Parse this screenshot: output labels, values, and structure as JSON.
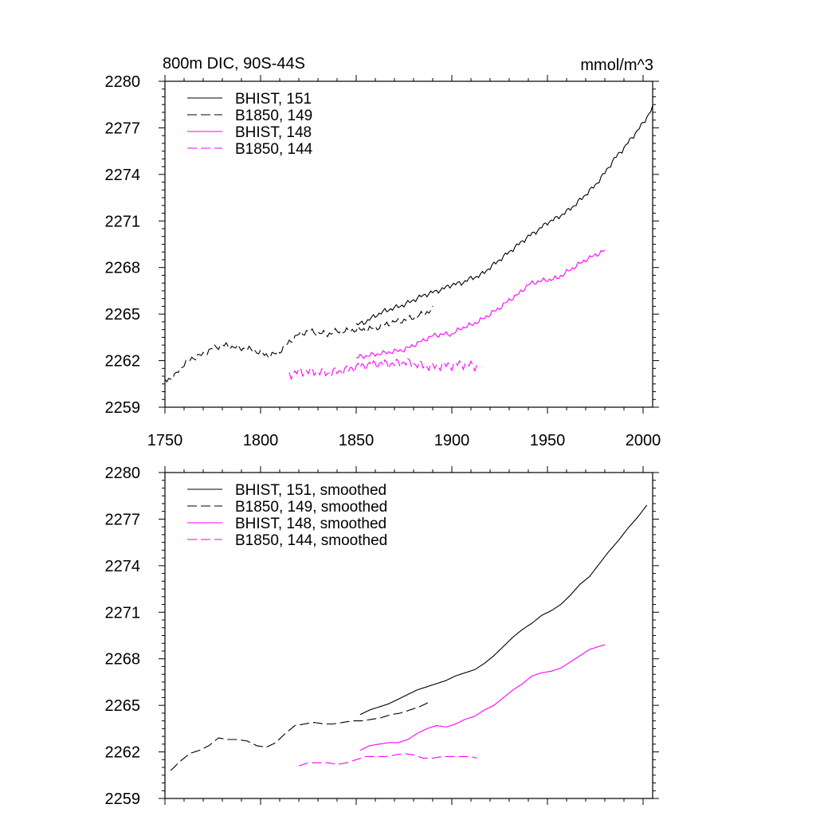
{
  "figure": {
    "title_left": "800m DIC, 90S-44S",
    "title_right": "mmol/m^3"
  },
  "chart_data": [
    {
      "type": "line",
      "xlim": [
        1750,
        2005
      ],
      "ylim": [
        2259,
        2280
      ],
      "xticks": [
        1750,
        1800,
        1850,
        1900,
        1950,
        2000
      ],
      "yticks": [
        2259,
        2262,
        2265,
        2268,
        2271,
        2274,
        2277,
        2280
      ],
      "show_xtick_labels": true,
      "legend_placement": "top-left",
      "colors": {
        "black": "#000000",
        "magenta": "#ff00ff"
      },
      "series": [
        {
          "name": "BHIST, 151",
          "color": "#000000",
          "dash": "solid",
          "x": [
            1850,
            1855,
            1860,
            1865,
            1870,
            1875,
            1880,
            1885,
            1890,
            1895,
            1900,
            1905,
            1910,
            1915,
            1920,
            1925,
            1930,
            1935,
            1940,
            1945,
            1950,
            1955,
            1960,
            1965,
            1970,
            1975,
            1980,
            1985,
            1990,
            1995,
            2000,
            2005
          ],
          "y": [
            2264.3,
            2264.5,
            2264.9,
            2265.2,
            2265.4,
            2265.6,
            2265.9,
            2266.2,
            2266.4,
            2266.6,
            2266.9,
            2267.0,
            2267.3,
            2267.5,
            2268.0,
            2268.5,
            2269.0,
            2269.5,
            2270.0,
            2270.4,
            2270.9,
            2271.2,
            2271.6,
            2272.1,
            2272.7,
            2273.3,
            2274.1,
            2275.0,
            2275.7,
            2276.5,
            2277.3,
            2278.3
          ],
          "noise": 0.18
        },
        {
          "name": "B1850, 149",
          "color": "#000000",
          "dash": "long",
          "x": [
            1750,
            1755,
            1760,
            1765,
            1770,
            1775,
            1780,
            1785,
            1790,
            1795,
            1800,
            1805,
            1810,
            1815,
            1820,
            1825,
            1830,
            1835,
            1840,
            1845,
            1850,
            1855,
            1860,
            1865,
            1870,
            1875,
            1880,
            1885,
            1890
          ],
          "y": [
            2260.7,
            2261.0,
            2261.8,
            2262.2,
            2262.4,
            2262.8,
            2263.0,
            2262.9,
            2262.8,
            2262.7,
            2262.5,
            2262.3,
            2262.6,
            2263.2,
            2263.7,
            2263.9,
            2263.8,
            2263.7,
            2263.9,
            2263.9,
            2264.0,
            2264.0,
            2264.1,
            2264.3,
            2264.5,
            2264.6,
            2264.8,
            2265.0,
            2265.3
          ],
          "noise": 0.22
        },
        {
          "name": "BHIST, 148",
          "color": "#ff00ff",
          "dash": "solid",
          "x": [
            1850,
            1855,
            1860,
            1865,
            1870,
            1875,
            1880,
            1885,
            1890,
            1895,
            1900,
            1905,
            1910,
            1915,
            1920,
            1925,
            1930,
            1935,
            1940,
            1945,
            1950,
            1955,
            1960,
            1965,
            1970,
            1975,
            1980
          ],
          "y": [
            2262.2,
            2262.3,
            2262.4,
            2262.5,
            2262.6,
            2262.7,
            2263.0,
            2263.3,
            2263.6,
            2263.7,
            2263.7,
            2264.1,
            2264.3,
            2264.6,
            2265.0,
            2265.4,
            2265.9,
            2266.3,
            2266.9,
            2267.1,
            2267.2,
            2267.3,
            2267.7,
            2268.1,
            2268.5,
            2268.8,
            2269.1
          ],
          "noise": 0.18
        },
        {
          "name": "B1850, 144",
          "color": "#ff00ff",
          "dash": "long",
          "x": [
            1815,
            1820,
            1825,
            1830,
            1835,
            1840,
            1845,
            1850,
            1855,
            1860,
            1865,
            1870,
            1875,
            1880,
            1885,
            1890,
            1895,
            1900,
            1905,
            1910,
            1915
          ],
          "y": [
            2261.1,
            2261.3,
            2261.3,
            2261.3,
            2261.2,
            2261.3,
            2261.4,
            2261.6,
            2261.7,
            2261.8,
            2261.8,
            2261.8,
            2261.9,
            2261.8,
            2261.7,
            2261.6,
            2261.7,
            2261.7,
            2261.8,
            2261.7,
            2261.6
          ],
          "noise": 0.35
        }
      ]
    },
    {
      "type": "line",
      "xlim": [
        1750,
        2005
      ],
      "ylim": [
        2259,
        2280
      ],
      "xticks": [
        1750,
        1800,
        1850,
        1900,
        1950,
        2000
      ],
      "yticks": [
        2259,
        2262,
        2265,
        2268,
        2271,
        2274,
        2277,
        2280
      ],
      "show_xtick_labels": false,
      "legend_placement": "top-left",
      "colors": {
        "black": "#000000",
        "magenta": "#ff00ff"
      },
      "series": [
        {
          "name": "BHIST, 151, smoothed",
          "color": "#000000",
          "dash": "solid",
          "x": [
            1852,
            1857,
            1862,
            1867,
            1872,
            1877,
            1882,
            1887,
            1892,
            1897,
            1902,
            1907,
            1912,
            1917,
            1922,
            1927,
            1932,
            1937,
            1942,
            1947,
            1952,
            1957,
            1962,
            1967,
            1972,
            1977,
            1982,
            1987,
            1992,
            1997,
            2002
          ],
          "y": [
            2264.4,
            2264.7,
            2264.9,
            2265.1,
            2265.4,
            2265.7,
            2266.0,
            2266.2,
            2266.4,
            2266.6,
            2266.9,
            2267.1,
            2267.3,
            2267.7,
            2268.2,
            2268.8,
            2269.4,
            2269.9,
            2270.3,
            2270.8,
            2271.1,
            2271.5,
            2272.1,
            2272.8,
            2273.3,
            2274.1,
            2274.9,
            2275.6,
            2276.4,
            2277.1,
            2277.9
          ],
          "noise": 0
        },
        {
          "name": "B1850, 149, smoothed",
          "color": "#000000",
          "dash": "long",
          "x": [
            1753,
            1758,
            1763,
            1768,
            1773,
            1778,
            1783,
            1788,
            1793,
            1798,
            1803,
            1808,
            1813,
            1818,
            1823,
            1828,
            1833,
            1838,
            1843,
            1848,
            1853,
            1858,
            1863,
            1868,
            1873,
            1878,
            1883,
            1888
          ],
          "y": [
            2260.8,
            2261.4,
            2261.9,
            2262.1,
            2262.4,
            2262.9,
            2262.8,
            2262.8,
            2262.7,
            2262.4,
            2262.3,
            2262.6,
            2263.2,
            2263.7,
            2263.8,
            2263.9,
            2263.8,
            2263.8,
            2263.9,
            2264.0,
            2264.0,
            2264.1,
            2264.2,
            2264.4,
            2264.5,
            2264.7,
            2264.9,
            2265.2
          ],
          "noise": 0
        },
        {
          "name": "BHIST, 148, smoothed",
          "color": "#ff00ff",
          "dash": "solid",
          "x": [
            1852,
            1857,
            1862,
            1867,
            1872,
            1877,
            1882,
            1887,
            1892,
            1897,
            1902,
            1907,
            1912,
            1917,
            1922,
            1927,
            1932,
            1937,
            1942,
            1947,
            1952,
            1957,
            1962,
            1967,
            1972,
            1977,
            1980
          ],
          "y": [
            2262.1,
            2262.4,
            2262.5,
            2262.6,
            2262.6,
            2262.8,
            2263.2,
            2263.5,
            2263.7,
            2263.6,
            2263.8,
            2264.1,
            2264.3,
            2264.7,
            2265.0,
            2265.5,
            2266.0,
            2266.4,
            2266.9,
            2267.1,
            2267.2,
            2267.4,
            2267.8,
            2268.2,
            2268.6,
            2268.8,
            2268.9
          ],
          "noise": 0
        },
        {
          "name": "B1850, 144, smoothed",
          "color": "#ff00ff",
          "dash": "long",
          "x": [
            1820,
            1825,
            1830,
            1835,
            1840,
            1845,
            1850,
            1855,
            1860,
            1865,
            1870,
            1875,
            1880,
            1885,
            1890,
            1895,
            1900,
            1905,
            1910,
            1913
          ],
          "y": [
            2261.1,
            2261.3,
            2261.3,
            2261.3,
            2261.2,
            2261.3,
            2261.5,
            2261.7,
            2261.7,
            2261.7,
            2261.8,
            2261.9,
            2261.8,
            2261.6,
            2261.6,
            2261.7,
            2261.7,
            2261.7,
            2261.7,
            2261.6
          ],
          "noise": 0
        }
      ]
    }
  ]
}
